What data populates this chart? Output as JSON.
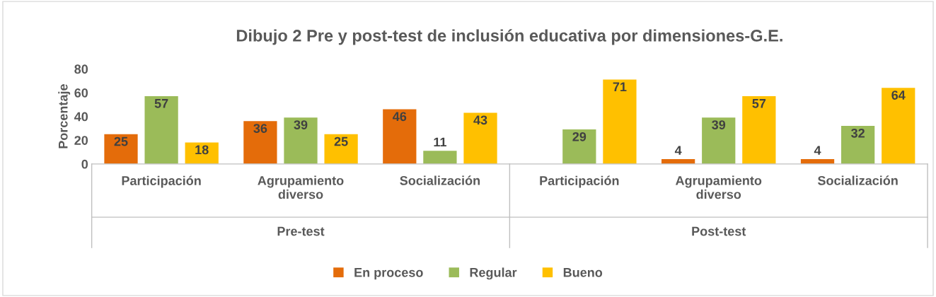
{
  "chart_data": {
    "type": "bar",
    "title": "Dibujo 2 Pre y post-test de inclusión educativa por dimensiones-G.E.",
    "ylabel": "Porcentaje",
    "categories": [
      "Participación",
      "Agrupamiento\ndiverso",
      "Socialización",
      "Participación",
      "Agrupamiento\ndiverso",
      "Socialización"
    ],
    "annotations": [
      "Pre-test",
      "Post-test"
    ],
    "series": [
      {
        "name": "En proceso",
        "color": "#e46c0a",
        "values": [
          25,
          36,
          46,
          null,
          4,
          4
        ]
      },
      {
        "name": "Regular",
        "color": "#9bbb59",
        "values": [
          57,
          39,
          11,
          29,
          39,
          32
        ]
      },
      {
        "name": "Bueno",
        "color": "#ffc000",
        "values": [
          18,
          25,
          43,
          71,
          57,
          64
        ]
      }
    ],
    "ylim": [
      0,
      80
    ],
    "yticks": [
      0,
      20,
      40,
      60,
      80
    ],
    "data_labels": true,
    "grid": false,
    "legend": "bottom"
  }
}
